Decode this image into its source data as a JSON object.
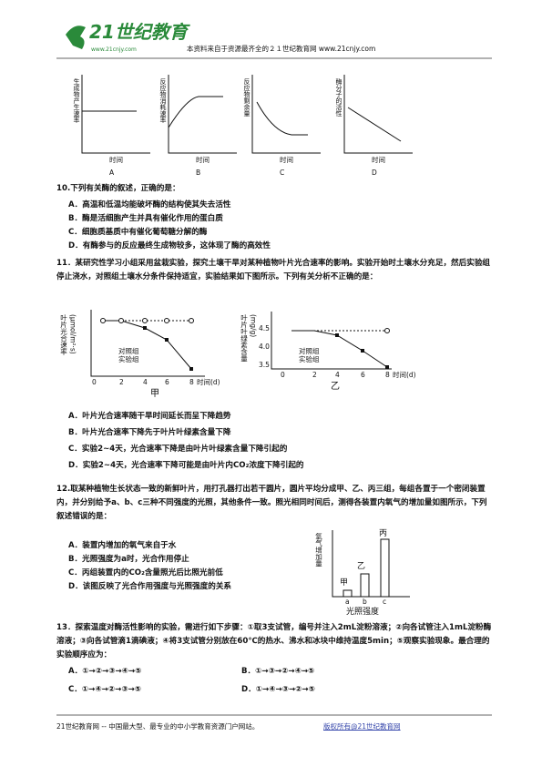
{
  "header": {
    "logo_text": "21世纪教育",
    "logo_url": "www.21cnjy.com",
    "notice": "本资料来自于资源最齐全的２１世纪教育网 www.21cnjy.com"
  },
  "top_graphs": [
    {
      "y_label": "生成物产生速率",
      "x_label": "时间",
      "caption": "A"
    },
    {
      "y_label": "反应物消耗速率",
      "x_label": "时间",
      "caption": "B"
    },
    {
      "y_label": "反应物剩余量",
      "x_label": "时间",
      "caption": "C"
    },
    {
      "y_label": "酶分子的活性",
      "x_label": "时间",
      "caption": "D"
    }
  ],
  "questions": [
    {
      "stem": "10.下列有关酶的叙述，正确的是：",
      "options": [
        "A．高温和低温均能破坏酶的结构使其失去活性",
        "B．酶是活细胞产生并具有催化作用的蛋白质",
        "C．细胞质基质中有催化葡萄糖分解的酶",
        "D．有酶参与的反应最终生成物较多，这体现了酶的高效性"
      ]
    },
    {
      "stem": "11．某研究性学习小组采用盆栽实验，探究土壤干旱对某种植物叶片光合速率的影响。实验开始时土壤水分充足，然后实验组停止浇水，对照组土壤水分条件保持适宜，实验结果如下图所示。下列有关分析不正确的是：",
      "charts": [
        {
          "y_label": "叶片光合速率",
          "y_unit": "(μmol/m²·s)",
          "x_ticks": [
            "0",
            "2",
            "4",
            "6",
            "8"
          ],
          "x_label": "时间(d)",
          "legend": [
            "对照组",
            "实验组"
          ],
          "caption": "甲"
        },
        {
          "y_label": "叶片叶绿素含量",
          "y_unit": "(mg/g)",
          "y_ticks": [
            "4.5",
            "4.0",
            "3.5"
          ],
          "x_ticks": [
            "0",
            "2",
            "4",
            "6",
            "8"
          ],
          "x_label": "时间(d)",
          "legend": [
            "对照组",
            "实验组"
          ],
          "caption": "乙"
        }
      ],
      "options": [
        "A．叶片光合速率随干旱时间延长而呈下降趋势",
        "B．叶片光合速率下降先于叶片叶绿素含量下降",
        "C．实验2~4天，光合速率下降是由叶片叶绿素含量下降引起的",
        "D．实验2~4天，光合速率下降可能是由叶片内CO₂浓度下降引起的"
      ]
    },
    {
      "stem": "12.取某种植物生长状态一致的新鲜叶片，用打孔器打出若干圆片，圆片平均分成甲、乙、丙三组，每组各置于一个密闭装置内，并分别给予a、b、c三种不同强度的光照，其他条件一致。照光相同时间后，测得各装置内氧气的增加量如图所示，下列叙述错误的是：",
      "chart": {
        "y_label": "氧气增加量",
        "x_label": "光照强度",
        "categories": [
          "a",
          "b",
          "c"
        ],
        "bar_labels": [
          "甲",
          "乙",
          "丙"
        ]
      },
      "options": [
        "A．装置内增加的氧气来自于水",
        "B．光照强度为a时，光合作用停止",
        "C．丙组装置内的CO₂含量照光后比照光前低",
        "D．该图反映了光合作用强度与光照强度的关系"
      ]
    },
    {
      "stem": "13．探索温度对酶活性影响的实验，需进行如下步骤：①取3支试管，编号并注入2mL淀粉溶液；②向各试管注入1mL淀粉酶溶液；③向各试管滴1滴碘液；④将3支试管分别放在60℃的热水、沸水和冰块中维持温度5min；⑤观察实验现象。最合理的实验顺序应为：",
      "options": [
        "A．①→②→③→④→⑤",
        "B．①→③→②→④→⑤",
        "C．①→④→②→③→⑤",
        "D．①→④→③→②→⑤"
      ]
    }
  ],
  "footer": {
    "left": "21世纪教育网 -- 中国最大型、最专业的中小学教育资源门户网站。",
    "right": "版权所有@21世纪教育网"
  }
}
